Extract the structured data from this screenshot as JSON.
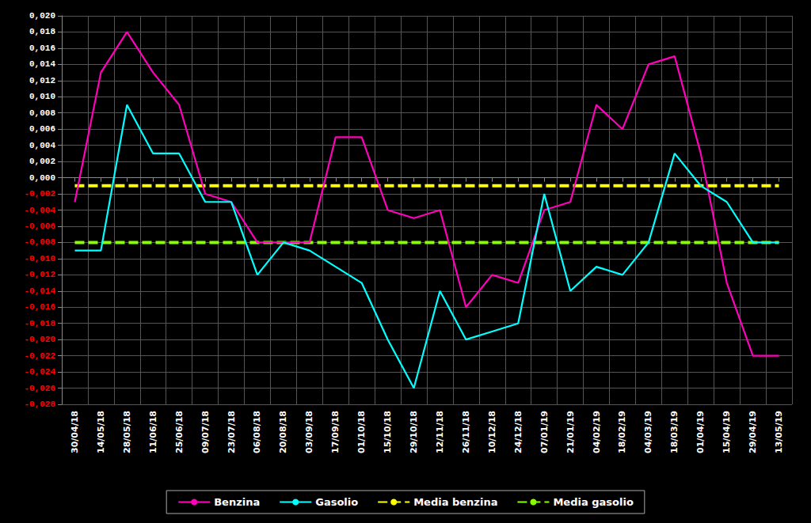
{
  "chart_data": {
    "type": "line",
    "categories": [
      "30/04/18",
      "14/05/18",
      "28/05/18",
      "11/06/18",
      "25/06/18",
      "09/07/18",
      "23/07/18",
      "06/08/18",
      "20/08/18",
      "03/09/18",
      "17/09/18",
      "01/10/18",
      "15/10/18",
      "29/10/18",
      "12/11/18",
      "26/11/18",
      "10/12/18",
      "24/12/18",
      "07/01/19",
      "21/01/19",
      "04/02/19",
      "18/02/19",
      "04/03/19",
      "18/03/19",
      "01/04/19",
      "15/04/19",
      "29/04/19",
      "13/05/19"
    ],
    "series": [
      {
        "name": "Benzina",
        "color": "#FF00BB",
        "line_style": "solid",
        "values": [
          -0.003,
          0.013,
          0.018,
          0.013,
          0.009,
          -0.002,
          -0.003,
          -0.008,
          -0.008,
          -0.008,
          0.005,
          0.005,
          -0.004,
          -0.005,
          -0.004,
          -0.016,
          -0.012,
          -0.013,
          -0.004,
          -0.003,
          0.009,
          0.006,
          0.014,
          0.015,
          0.003,
          -0.013,
          -0.022,
          -0.022
        ]
      },
      {
        "name": "Gasolio",
        "color": "#00FFFF",
        "line_style": "solid",
        "values": [
          -0.009,
          -0.009,
          0.009,
          0.003,
          0.003,
          -0.003,
          -0.003,
          -0.012,
          -0.008,
          -0.009,
          -0.011,
          -0.013,
          -0.02,
          -0.026,
          -0.014,
          -0.02,
          -0.019,
          -0.018,
          -0.002,
          -0.014,
          -0.011,
          -0.012,
          -0.008,
          0.003,
          -0.001,
          -0.003,
          -0.008,
          -0.008
        ]
      },
      {
        "name": "Media benzina",
        "color": "#FFFF00",
        "line_style": "dashed",
        "values": [
          -0.001,
          -0.001,
          -0.001,
          -0.001,
          -0.001,
          -0.001,
          -0.001,
          -0.001,
          -0.001,
          -0.001,
          -0.001,
          -0.001,
          -0.001,
          -0.001,
          -0.001,
          -0.001,
          -0.001,
          -0.001,
          -0.001,
          -0.001,
          -0.001,
          -0.001,
          -0.001,
          -0.001,
          -0.001,
          -0.001,
          -0.001,
          -0.001
        ]
      },
      {
        "name": "Media gasolio",
        "color": "#88FF00",
        "line_style": "dashed",
        "values": [
          -0.008,
          -0.008,
          -0.008,
          -0.008,
          -0.008,
          -0.008,
          -0.008,
          -0.008,
          -0.008,
          -0.008,
          -0.008,
          -0.008,
          -0.008,
          -0.008,
          -0.008,
          -0.008,
          -0.008,
          -0.008,
          -0.008,
          -0.008,
          -0.008,
          -0.008,
          -0.008,
          -0.008,
          -0.008,
          -0.008,
          -0.008,
          -0.008
        ]
      }
    ],
    "ylim": [
      -0.028,
      0.02
    ],
    "yticks": [
      {
        "value": -0.028,
        "label": "-0,028"
      },
      {
        "value": -0.026,
        "label": "-0,026"
      },
      {
        "value": -0.024,
        "label": "-0,024"
      },
      {
        "value": -0.022,
        "label": "-0,022"
      },
      {
        "value": -0.02,
        "label": "-0,020"
      },
      {
        "value": -0.018,
        "label": "-0,018"
      },
      {
        "value": -0.016,
        "label": "-0,016"
      },
      {
        "value": -0.014,
        "label": "-0,014"
      },
      {
        "value": -0.012,
        "label": "-0,012"
      },
      {
        "value": -0.01,
        "label": "-0,010"
      },
      {
        "value": -0.008,
        "label": "-0,008"
      },
      {
        "value": -0.006,
        "label": "-0,006"
      },
      {
        "value": -0.004,
        "label": "-0,004"
      },
      {
        "value": -0.002,
        "label": "-0,002"
      },
      {
        "value": 0,
        "label": "0,000"
      },
      {
        "value": 0.002,
        "label": "0,002"
      },
      {
        "value": 0.004,
        "label": "0,004"
      },
      {
        "value": 0.006,
        "label": "0,006"
      },
      {
        "value": 0.008,
        "label": "0,008"
      },
      {
        "value": 0.01,
        "label": "0,010"
      },
      {
        "value": 0.012,
        "label": "0,012"
      },
      {
        "value": 0.014,
        "label": "0,014"
      },
      {
        "value": 0.016,
        "label": "0,016"
      },
      {
        "value": 0.018,
        "label": "0,018"
      },
      {
        "value": 0.02,
        "label": "0,020"
      }
    ],
    "grid": true,
    "legend": "bottom"
  }
}
